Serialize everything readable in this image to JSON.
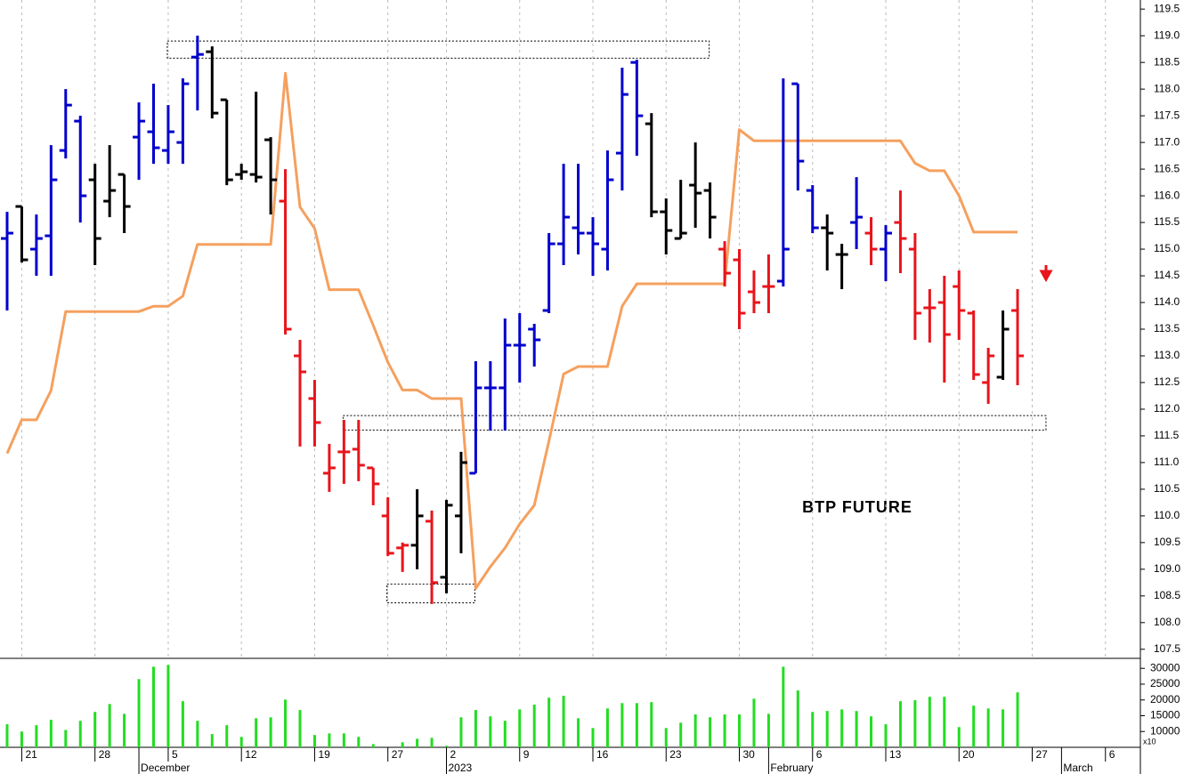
{
  "chart_data": {
    "type": "ohlc",
    "title": "BTP FUTURE",
    "categories": [
      null,
      "21",
      null,
      null,
      null,
      null,
      "28",
      null,
      null,
      null,
      null,
      "5",
      null,
      null,
      null,
      null,
      "12",
      null,
      null,
      null,
      null,
      "19",
      null,
      null,
      null,
      null,
      "27",
      null,
      null,
      null,
      "2",
      null,
      null,
      null,
      null,
      "9",
      null,
      null,
      null,
      null,
      "16",
      null,
      null,
      null,
      null,
      "23",
      null,
      null,
      null,
      null,
      "30",
      null,
      null,
      null,
      null,
      "6",
      null,
      null,
      null,
      null,
      "13",
      null,
      null,
      null,
      null,
      "20",
      null,
      null,
      null,
      null,
      "27",
      null,
      null,
      null,
      null,
      "6"
    ],
    "category_row2": [
      null,
      null,
      null,
      null,
      null,
      null,
      null,
      null,
      null,
      "December",
      null,
      null,
      null,
      null,
      null,
      null,
      null,
      null,
      null,
      null,
      null,
      null,
      null,
      null,
      null,
      null,
      null,
      null,
      null,
      null,
      "2023",
      null,
      null,
      null,
      null,
      null,
      null,
      null,
      null,
      null,
      null,
      null,
      null,
      null,
      null,
      null,
      null,
      null,
      null,
      null,
      null,
      null,
      "February",
      null,
      null,
      null,
      null,
      null,
      null,
      null,
      null,
      null,
      null,
      null,
      null,
      null,
      null,
      null,
      null,
      null,
      null,
      null,
      "March",
      null,
      null,
      null
    ],
    "open": [
      115.2,
      115.8,
      115.0,
      115.25,
      116.85,
      117.4,
      116.3,
      115.9,
      116.4,
      117.1,
      117.2,
      116.85,
      117.0,
      118.6,
      118.7,
      117.8,
      116.4,
      116.4,
      117.05,
      115.9,
      113.0,
      112.2,
      110.8,
      111.2,
      111.25,
      110.9,
      110.0,
      109.4,
      109.45,
      109.9,
      108.85,
      110.0,
      110.8,
      112.4,
      112.4,
      113.2,
      113.5,
      113.85,
      115.1,
      115.4,
      115.3,
      115.0,
      116.8,
      118.5,
      117.35,
      115.7,
      115.2,
      116.2,
      116.1,
      115.0,
      114.8,
      114.2,
      114.3,
      114.4,
      118.1,
      116.1,
      115.4,
      114.9,
      115.5,
      115.3,
      115.0,
      115.5,
      115.0,
      113.9,
      114.0,
      114.3,
      113.8,
      112.5,
      112.6,
      113.85,
      null,
      null,
      null,
      null,
      null,
      null
    ],
    "high": [
      115.7,
      115.8,
      115.65,
      116.95,
      118.0,
      117.5,
      116.6,
      116.95,
      116.4,
      117.75,
      118.1,
      117.7,
      118.2,
      119.0,
      118.8,
      117.8,
      116.6,
      117.95,
      117.1,
      116.5,
      113.3,
      112.55,
      111.35,
      111.8,
      111.8,
      110.9,
      110.35,
      109.5,
      110.5,
      110.1,
      110.3,
      111.2,
      112.9,
      112.9,
      113.7,
      113.8,
      113.6,
      115.3,
      116.6,
      116.6,
      115.6,
      116.85,
      118.4,
      118.55,
      117.55,
      115.95,
      116.3,
      117.0,
      116.25,
      115.15,
      115.0,
      114.6,
      114.9,
      118.2,
      118.1,
      116.2,
      115.65,
      115.1,
      116.35,
      115.6,
      115.45,
      116.1,
      115.3,
      114.25,
      114.5,
      114.6,
      113.85,
      113.15,
      113.85,
      114.25,
      null,
      null,
      null,
      null,
      null,
      null
    ],
    "low": [
      113.85,
      114.75,
      114.5,
      114.5,
      116.7,
      115.5,
      114.7,
      115.6,
      115.3,
      116.3,
      116.6,
      116.6,
      116.6,
      117.6,
      117.45,
      116.2,
      116.3,
      116.25,
      115.65,
      113.4,
      111.3,
      111.3,
      110.45,
      110.6,
      110.65,
      110.2,
      109.25,
      108.95,
      109.0,
      108.35,
      108.55,
      109.3,
      110.8,
      111.6,
      111.6,
      112.5,
      112.8,
      113.8,
      114.7,
      114.9,
      114.5,
      114.6,
      116.1,
      116.75,
      115.6,
      114.9,
      115.2,
      115.4,
      115.2,
      114.3,
      113.5,
      113.8,
      113.8,
      114.3,
      116.1,
      115.3,
      114.6,
      114.25,
      115.0,
      114.7,
      114.4,
      114.55,
      113.3,
      113.25,
      112.5,
      113.3,
      112.55,
      112.1,
      112.55,
      112.45,
      null,
      null,
      null,
      null,
      null,
      null
    ],
    "close": [
      115.3,
      114.8,
      115.2,
      116.3,
      117.7,
      116.0,
      115.2,
      116.1,
      115.8,
      117.4,
      116.9,
      117.2,
      118.1,
      118.65,
      117.55,
      116.3,
      116.45,
      116.35,
      116.3,
      113.5,
      112.7,
      111.75,
      110.9,
      111.2,
      110.95,
      110.6,
      109.3,
      109.45,
      110.0,
      108.75,
      110.2,
      111.0,
      112.4,
      112.4,
      113.2,
      113.2,
      113.3,
      115.1,
      115.6,
      115.3,
      115.1,
      116.3,
      117.9,
      117.5,
      115.7,
      115.35,
      115.3,
      116.05,
      115.6,
      114.55,
      113.8,
      114.0,
      114.3,
      115.0,
      116.65,
      115.4,
      115.3,
      114.9,
      115.6,
      115.0,
      115.3,
      115.2,
      113.8,
      113.9,
      113.4,
      113.85,
      112.65,
      113.0,
      113.5,
      113.0,
      null,
      null,
      null,
      null,
      null,
      null
    ],
    "bar_colors": [
      "#0000cc",
      "#000000",
      "#0000cc",
      "#0000cc",
      "#0000cc",
      "#0000cc",
      "#000000",
      "#000000",
      "#000000",
      "#0000cc",
      "#0000cc",
      "#0000cc",
      "#0000cc",
      "#0000cc",
      "#000000",
      "#000000",
      "#000000",
      "#000000",
      "#000000",
      "#e8141b",
      "#e8141b",
      "#e8141b",
      "#e8141b",
      "#e8141b",
      "#e8141b",
      "#e8141b",
      "#e8141b",
      "#e8141b",
      "#000000",
      "#e8141b",
      "#000000",
      "#000000",
      "#0000cc",
      "#0000cc",
      "#0000cc",
      "#0000cc",
      "#0000cc",
      "#0000cc",
      "#0000cc",
      "#0000cc",
      "#0000cc",
      "#0000cc",
      "#0000cc",
      "#0000cc",
      "#000000",
      "#000000",
      "#000000",
      "#000000",
      "#000000",
      "#e8141b",
      "#e8141b",
      "#e8141b",
      "#e8141b",
      "#0000cc",
      "#0000cc",
      "#0000cc",
      "#000000",
      "#000000",
      "#0000cc",
      "#e8141b",
      "#0000cc",
      "#e8141b",
      "#e8141b",
      "#e8141b",
      "#e8141b",
      "#e8141b",
      "#e8141b",
      "#e8141b",
      "#000000",
      "#e8141b",
      null,
      null,
      null,
      null,
      null,
      null
    ],
    "line": {
      "color": "#f5a05e",
      "values": [
        111.17,
        111.8,
        111.8,
        112.35,
        113.83,
        113.83,
        113.83,
        113.83,
        113.83,
        113.83,
        113.93,
        113.93,
        114.12,
        115.09,
        115.09,
        115.09,
        115.09,
        115.09,
        115.09,
        118.3,
        115.79,
        115.39,
        114.24,
        114.24,
        114.24,
        113.57,
        112.88,
        112.36,
        112.36,
        112.2,
        112.2,
        112.2,
        108.64,
        109.05,
        109.4,
        109.85,
        110.2,
        111.4,
        112.66,
        112.8,
        112.8,
        112.8,
        113.93,
        114.35,
        114.35,
        114.35,
        114.35,
        114.35,
        114.35,
        114.35,
        117.24,
        117.03,
        117.03,
        117.03,
        117.03,
        117.03,
        117.03,
        117.03,
        117.03,
        117.03,
        117.03,
        117.03,
        116.61,
        116.47,
        116.47,
        116.0,
        115.32,
        115.32,
        115.32,
        115.32,
        null,
        null,
        null,
        null,
        null,
        null
      ]
    },
    "ylim": [
      107.33,
      119.67
    ],
    "yticks": [
      107.5,
      {
        "value": 108,
        "label": "108.0"
      },
      108.5,
      {
        "value": 109,
        "label": "109.0"
      },
      109.5,
      {
        "value": 110,
        "label": "110.0"
      },
      110.5,
      {
        "value": 111,
        "label": "111.0"
      },
      111.5,
      {
        "value": 112,
        "label": "112.0"
      },
      112.5,
      {
        "value": 113,
        "label": "113.0"
      },
      113.5,
      {
        "value": 114,
        "label": "114.0"
      },
      114.5,
      {
        "value": 115,
        "label": "115.0"
      },
      115.5,
      {
        "value": 116,
        "label": "116.0"
      },
      116.5,
      {
        "value": 117,
        "label": "117.0"
      },
      117.5,
      {
        "value": 118,
        "label": "118.0"
      },
      118.5,
      {
        "value": 119,
        "label": "119.0"
      },
      119.5
    ],
    "boxes": [
      {
        "x0": 11,
        "x1": 48,
        "y0": 118.58,
        "y1": 118.9
      },
      {
        "x0": 23,
        "x1": 71,
        "y0": 111.61,
        "y1": 111.88
      },
      {
        "x0": 26,
        "x1": 32,
        "y0": 108.37,
        "y1": 108.72
      }
    ],
    "grid": true,
    "volume": {
      "color": "#22dd22",
      "unit_label": "x10",
      "values": [
        12300,
        10000,
        12000,
        13700,
        10500,
        13400,
        16200,
        18700,
        15600,
        26600,
        30500,
        31100,
        19600,
        13400,
        9200,
        12000,
        8300,
        14200,
        14500,
        20100,
        16800,
        8900,
        9400,
        9400,
        8300,
        6000,
        5000,
        6600,
        7700,
        8000,
        5500,
        14500,
        16800,
        14800,
        13400,
        17000,
        18500,
        20700,
        21300,
        14200,
        11100,
        17300,
        19000,
        19000,
        19300,
        11100,
        12800,
        15400,
        14500,
        15400,
        15400,
        20400,
        15600,
        30500,
        23000,
        16200,
        16500,
        17000,
        16500,
        14800,
        12300,
        19600,
        19900,
        21000,
        21000,
        11400,
        18200,
        17300,
        17000,
        22400,
        null,
        null,
        null,
        null,
        null,
        null
      ],
      "ylim": [
        5000,
        32600
      ],
      "yticks": [
        10000,
        15000,
        20000,
        25000,
        30000
      ]
    }
  }
}
